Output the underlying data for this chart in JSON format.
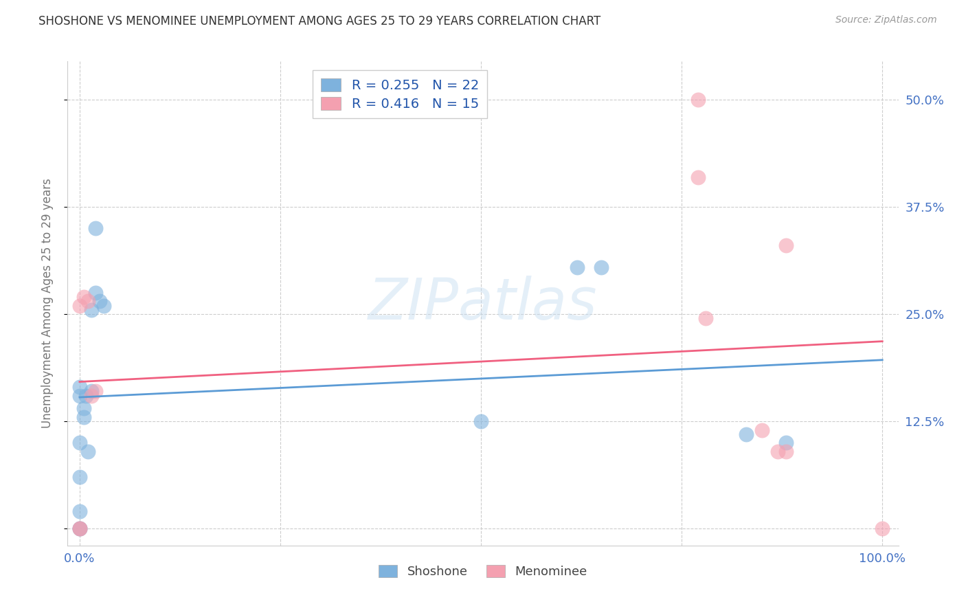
{
  "title": "SHOSHONE VS MENOMINEE UNEMPLOYMENT AMONG AGES 25 TO 29 YEARS CORRELATION CHART",
  "source": "Source: ZipAtlas.com",
  "ylabel": "Unemployment Among Ages 25 to 29 years",
  "shoshone_x": [
    0.0,
    0.0,
    0.0,
    0.0,
    0.0,
    0.0,
    0.0,
    0.005,
    0.005,
    0.008,
    0.01,
    0.015,
    0.015,
    0.02,
    0.02,
    0.025,
    0.03,
    0.5,
    0.62,
    0.65,
    0.83,
    0.88
  ],
  "shoshone_y": [
    0.0,
    0.0,
    0.02,
    0.06,
    0.1,
    0.155,
    0.165,
    0.13,
    0.14,
    0.155,
    0.09,
    0.255,
    0.16,
    0.275,
    0.35,
    0.265,
    0.26,
    0.125,
    0.305,
    0.305,
    0.11,
    0.1
  ],
  "menominee_x": [
    0.0,
    0.0,
    0.0,
    0.005,
    0.01,
    0.015,
    0.02,
    0.77,
    0.77,
    0.78,
    0.85,
    0.87,
    0.88,
    0.88,
    1.0
  ],
  "menominee_y": [
    0.0,
    0.0,
    0.26,
    0.27,
    0.265,
    0.155,
    0.16,
    0.5,
    0.41,
    0.245,
    0.115,
    0.09,
    0.33,
    0.09,
    0.0
  ],
  "shoshone_color": "#7EB2DD",
  "menominee_color": "#F4A0B0",
  "shoshone_line_color": "#5B9BD5",
  "menominee_line_color": "#F06080",
  "background_color": "#FFFFFF",
  "grid_color": "#CCCCCC",
  "watermark_zip": "ZIP",
  "watermark_atlas": "atlas",
  "legend_R_shoshone": "0.255",
  "legend_N_shoshone": "22",
  "legend_R_menominee": "0.416",
  "legend_N_menominee": "15",
  "xlim": [
    -0.015,
    1.02
  ],
  "ylim": [
    -0.02,
    0.545
  ],
  "xticks": [
    0.0,
    0.25,
    0.5,
    0.75,
    1.0
  ],
  "xtick_labels": [
    "0.0%",
    "",
    "",
    "",
    "100.0%"
  ],
  "ytick_right_vals": [
    0.0,
    0.125,
    0.25,
    0.375,
    0.5
  ],
  "ytick_right_labels": [
    "",
    "12.5%",
    "25.0%",
    "37.5%",
    "50.0%"
  ],
  "title_color": "#333333",
  "axis_label_color": "#777777",
  "tick_label_color": "#4472C4",
  "legend_label_shoshone": "Shoshone",
  "legend_label_menominee": "Menominee",
  "legend_text_color": "#2255AA"
}
